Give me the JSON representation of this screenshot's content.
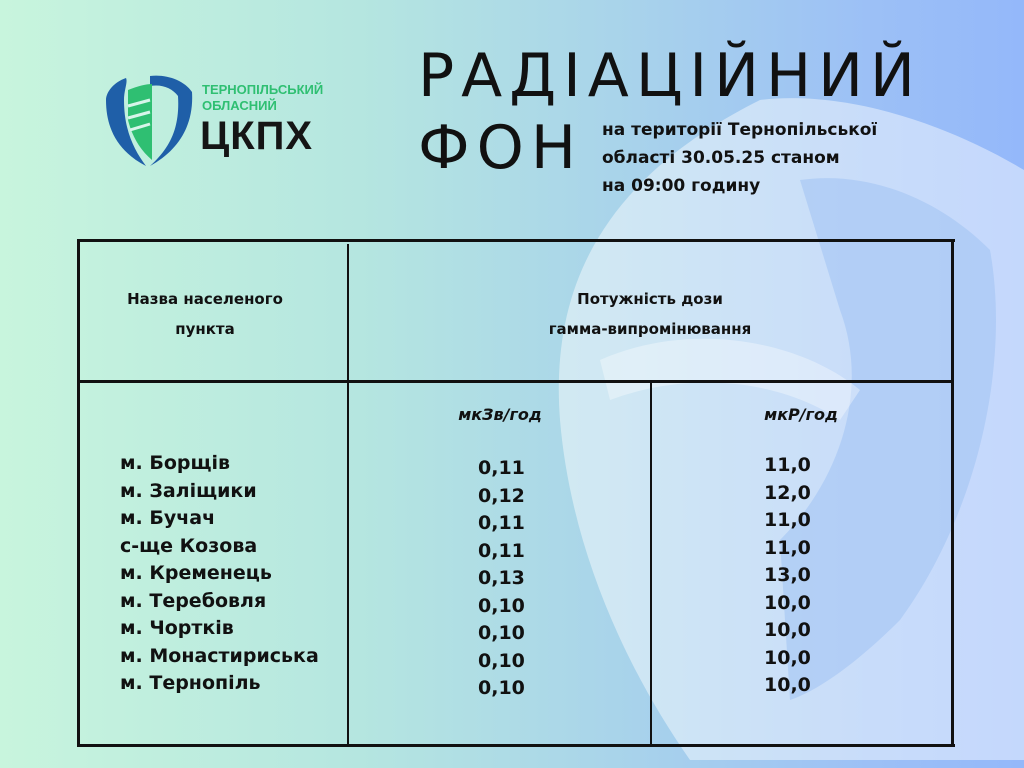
{
  "logo": {
    "line1": "ТЕРНОПІЛЬСЬКИЙ",
    "line2": "ОБЛАСНИЙ",
    "abbr": "ЦКПХ",
    "colors": {
      "blue": "#1f5fa8",
      "green": "#2fbf72"
    }
  },
  "title": {
    "line1": "РАДІАЦІЙНИЙ",
    "line2": "ФОН",
    "subtitle": [
      "на території Тернопільської",
      "області 30.05.25 станом",
      "на 09:00 годину"
    ]
  },
  "table": {
    "col1_header": [
      "Назва населеного",
      "пункта"
    ],
    "col2_header": [
      "Потужність дози",
      "гамма-випромінювання"
    ],
    "unit1": "мкЗв/год",
    "unit2": "мкР/год",
    "rows": [
      {
        "name": "м. Борщів",
        "usv": "0,11",
        "ur": "11,0"
      },
      {
        "name": "м. Заліщики",
        "usv": "0,12",
        "ur": "12,0"
      },
      {
        "name": "м. Бучач",
        "usv": "0,11",
        "ur": "11,0"
      },
      {
        "name": "с-ще Козова",
        "usv": "0,11",
        "ur": "11,0"
      },
      {
        "name": "м. Кременець",
        "usv": "0,13",
        "ur": "13,0"
      },
      {
        "name": "м. Теребовля",
        "usv": "0,10",
        "ur": "10,0"
      },
      {
        "name": "м. Чортків",
        "usv": "0,10",
        "ur": "10,0"
      },
      {
        "name": "м. Монастириська",
        "usv": "0,10",
        "ur": "10,0"
      },
      {
        "name": "м. Тернопіль",
        "usv": "0,10",
        "ur": "10,0"
      }
    ]
  }
}
